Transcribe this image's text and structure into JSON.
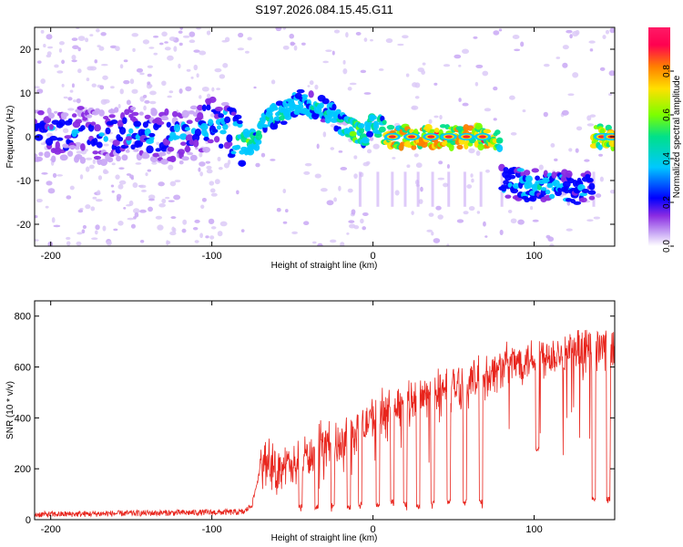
{
  "title": "S197.2026.084.15.45.G11",
  "chart_data": [
    {
      "type": "heatmap",
      "title": "S197.2026.084.15.45.G11",
      "xlabel": "Height of straight line (km)",
      "ylabel": "Frequency (Hz)",
      "xlim": [
        -210,
        150
      ],
      "ylim": [
        -25,
        25
      ],
      "x_ticks": [
        -200,
        -100,
        0,
        100
      ],
      "y_ticks": [
        -20,
        -10,
        0,
        10,
        20
      ],
      "colorbar": {
        "label": "Normalized spectral amplitude",
        "range": [
          0,
          1
        ],
        "ticks": [
          "0.0",
          "0.2",
          "0.4",
          "0.6",
          "0.8"
        ],
        "colors": [
          "#ffffff",
          "#c9a8f5",
          "#8a2be2",
          "#0000ff",
          "#00c8ff",
          "#00e08a",
          "#7cff00",
          "#ffe000",
          "#ff8000",
          "#ff0050",
          "#ff1a66"
        ]
      },
      "ridge": [
        {
          "x": -210,
          "y": 0.5,
          "a": 0.3
        },
        {
          "x": -190,
          "y": 1,
          "a": 0.32
        },
        {
          "x": -170,
          "y": 0,
          "a": 0.33
        },
        {
          "x": -150,
          "y": 1,
          "a": 0.34
        },
        {
          "x": -130,
          "y": 0,
          "a": 0.35
        },
        {
          "x": -110,
          "y": 1,
          "a": 0.35
        },
        {
          "x": -100,
          "y": 3,
          "a": 0.4
        },
        {
          "x": -90,
          "y": 2,
          "a": 0.45
        },
        {
          "x": -80,
          "y": -1,
          "a": 0.6
        },
        {
          "x": -72,
          "y": -1,
          "a": 0.55
        },
        {
          "x": -68,
          "y": 4,
          "a": 0.45
        },
        {
          "x": -60,
          "y": 5,
          "a": 0.5
        },
        {
          "x": -55,
          "y": 5.5,
          "a": 0.5
        },
        {
          "x": -50,
          "y": 7,
          "a": 0.5
        },
        {
          "x": -45,
          "y": 8,
          "a": 0.45
        },
        {
          "x": -35,
          "y": 7,
          "a": 0.45
        },
        {
          "x": -25,
          "y": 5,
          "a": 0.45
        },
        {
          "x": -15,
          "y": 2,
          "a": 0.6
        },
        {
          "x": -10,
          "y": 1,
          "a": 0.7
        },
        {
          "x": -5,
          "y": 0,
          "a": 0.6
        },
        {
          "x": 0,
          "y": 2.5,
          "a": 0.5
        },
        {
          "x": 5,
          "y": 2,
          "a": 0.6
        },
        {
          "x": 10,
          "y": 0,
          "a": 0.9
        },
        {
          "x": 20,
          "y": 0,
          "a": 0.95
        },
        {
          "x": 30,
          "y": 0,
          "a": 0.95
        },
        {
          "x": 40,
          "y": 0,
          "a": 1.0
        },
        {
          "x": 50,
          "y": 0,
          "a": 0.95
        },
        {
          "x": 60,
          "y": 0,
          "a": 0.95
        },
        {
          "x": 70,
          "y": 0,
          "a": 0.95
        },
        {
          "x": 78,
          "y": 0,
          "a": 0.8
        },
        {
          "x": 80,
          "y": -10,
          "a": 0.35
        },
        {
          "x": 95,
          "y": -11,
          "a": 0.4
        },
        {
          "x": 110,
          "y": -11,
          "a": 0.45
        },
        {
          "x": 125,
          "y": -12,
          "a": 0.35
        },
        {
          "x": 135,
          "y": -12,
          "a": 0.3
        },
        {
          "x": 137,
          "y": 0,
          "a": 0.9
        },
        {
          "x": 150,
          "y": 0,
          "a": 0.9
        }
      ]
    },
    {
      "type": "line",
      "xlabel": "Height of straight line (km)",
      "ylabel": "SNR (10 * v/v)",
      "xlim": [
        -210,
        150
      ],
      "ylim": [
        0,
        860
      ],
      "x_ticks": [
        -200,
        -100,
        0,
        100
      ],
      "y_ticks": [
        0,
        200,
        400,
        600,
        800
      ],
      "color": "#e8251d",
      "x": [
        -210,
        -150,
        -80,
        -75,
        -70,
        -65,
        -60,
        -55,
        -50,
        -45,
        -40,
        -35,
        -30,
        -25,
        -20,
        -15,
        -10,
        -5,
        0,
        5,
        10,
        15,
        20,
        30,
        40,
        50,
        60,
        70,
        80,
        90,
        100,
        110,
        120,
        130,
        140,
        150
      ],
      "y": [
        20,
        25,
        30,
        60,
        200,
        250,
        180,
        230,
        190,
        260,
        240,
        280,
        300,
        320,
        280,
        350,
        330,
        380,
        400,
        420,
        430,
        450,
        450,
        480,
        500,
        520,
        540,
        560,
        600,
        620,
        640,
        650,
        655,
        660,
        670,
        690
      ],
      "dips": [
        {
          "x": -45,
          "y": 40
        },
        {
          "x": -35,
          "y": 40
        },
        {
          "x": -25,
          "y": 45
        },
        {
          "x": -15,
          "y": 40
        },
        {
          "x": -8,
          "y": 50
        },
        {
          "x": 3,
          "y": 45
        },
        {
          "x": 12,
          "y": 60
        },
        {
          "x": 20,
          "y": 50
        },
        {
          "x": 28,
          "y": 40
        },
        {
          "x": 37,
          "y": 60
        },
        {
          "x": 47,
          "y": 60
        },
        {
          "x": 57,
          "y": 60
        },
        {
          "x": 67,
          "y": 60
        },
        {
          "x": 102,
          "y": 270
        },
        {
          "x": 137,
          "y": 70
        },
        {
          "x": 146,
          "y": 70
        }
      ]
    }
  ]
}
